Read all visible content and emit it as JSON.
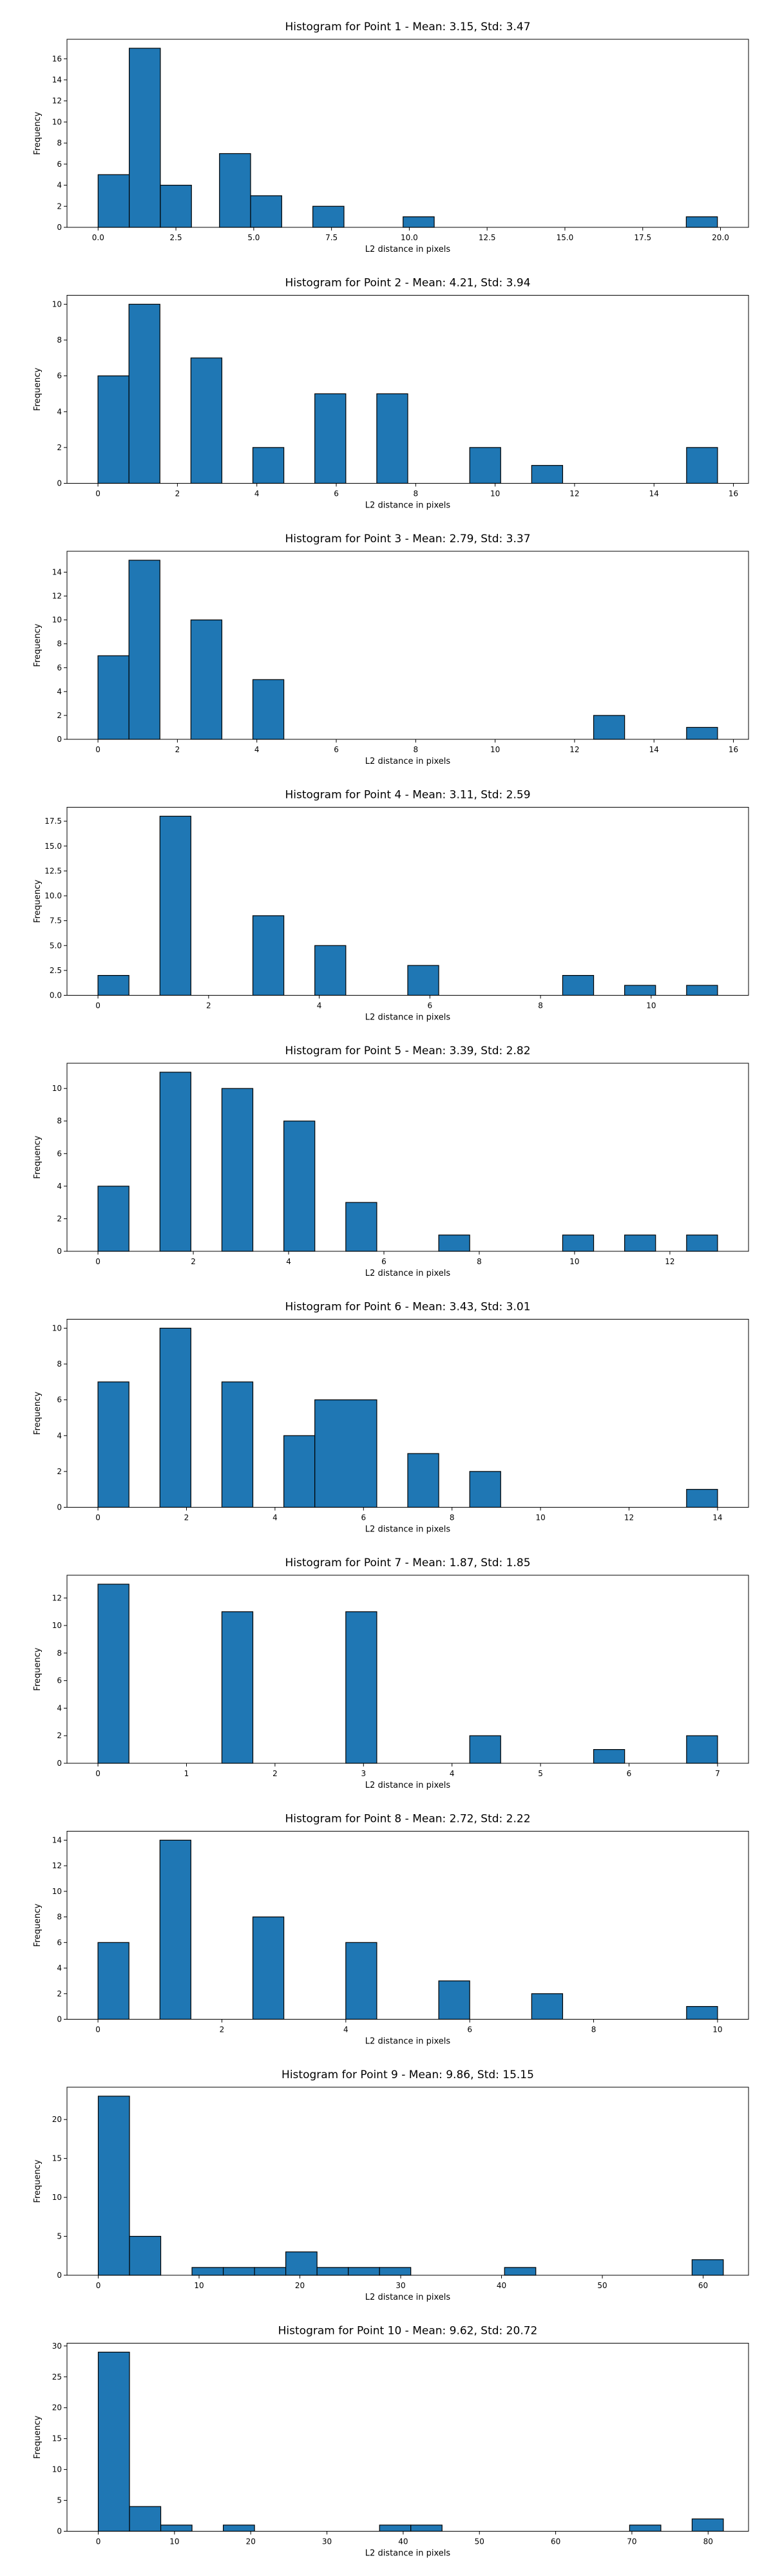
{
  "chart_data": [
    {
      "type": "bar",
      "title": "Histogram for Point 1 - Mean: 3.15, Std: 3.47",
      "xlabel": "L2 distance in pixels",
      "ylabel": "Frequency",
      "xlim": [
        -1.0,
        20.9
      ],
      "ylim": [
        0,
        17.85
      ],
      "xticks": [
        0.0,
        2.5,
        5.0,
        7.5,
        10.0,
        12.5,
        15.0,
        17.5,
        20.0
      ],
      "xtick_labels": [
        "0.0",
        "2.5",
        "5.0",
        "7.5",
        "10.0",
        "12.5",
        "15.0",
        "17.5",
        "20.0"
      ],
      "yticks": [
        0,
        2,
        4,
        6,
        8,
        10,
        12,
        14,
        16
      ],
      "ytick_labels": [
        "0",
        "2",
        "4",
        "6",
        "8",
        "10",
        "12",
        "14",
        "16"
      ],
      "grid": false,
      "bins": [
        {
          "x0": 0.0,
          "x1": 1.0,
          "count": 5
        },
        {
          "x0": 1.0,
          "x1": 2.0,
          "count": 17
        },
        {
          "x0": 2.0,
          "x1": 3.0,
          "count": 4
        },
        {
          "x0": 3.9,
          "x1": 4.9,
          "count": 7
        },
        {
          "x0": 4.9,
          "x1": 5.9,
          "count": 3
        },
        {
          "x0": 6.9,
          "x1": 7.9,
          "count": 2
        },
        {
          "x0": 9.8,
          "x1": 10.8,
          "count": 1
        },
        {
          "x0": 18.9,
          "x1": 19.9,
          "count": 1
        }
      ]
    },
    {
      "type": "bar",
      "title": "Histogram for Point 2 - Mean: 4.21, Std: 3.94",
      "xlabel": "L2 distance in pixels",
      "ylabel": "Frequency",
      "xlim": [
        -0.78,
        16.38
      ],
      "ylim": [
        0,
        10.5
      ],
      "xticks": [
        0,
        2,
        4,
        6,
        8,
        10,
        12,
        14,
        16
      ],
      "xtick_labels": [
        "0",
        "2",
        "4",
        "6",
        "8",
        "10",
        "12",
        "14",
        "16"
      ],
      "yticks": [
        0,
        2,
        4,
        6,
        8,
        10
      ],
      "ytick_labels": [
        "0",
        "2",
        "4",
        "6",
        "8",
        "10"
      ],
      "grid": false,
      "bins": [
        {
          "x0": 0.0,
          "x1": 0.78,
          "count": 6
        },
        {
          "x0": 0.78,
          "x1": 1.56,
          "count": 10
        },
        {
          "x0": 2.34,
          "x1": 3.12,
          "count": 7
        },
        {
          "x0": 3.9,
          "x1": 4.68,
          "count": 2
        },
        {
          "x0": 5.46,
          "x1": 6.24,
          "count": 5
        },
        {
          "x0": 7.02,
          "x1": 7.8,
          "count": 5
        },
        {
          "x0": 9.36,
          "x1": 10.14,
          "count": 2
        },
        {
          "x0": 10.92,
          "x1": 11.7,
          "count": 1
        },
        {
          "x0": 14.82,
          "x1": 15.6,
          "count": 2
        }
      ]
    },
    {
      "type": "bar",
      "title": "Histogram for Point 3 - Mean: 2.79, Std: 3.37",
      "xlabel": "L2 distance in pixels",
      "ylabel": "Frequency",
      "xlim": [
        -0.78,
        16.38
      ],
      "ylim": [
        0,
        15.75
      ],
      "xticks": [
        0,
        2,
        4,
        6,
        8,
        10,
        12,
        14,
        16
      ],
      "xtick_labels": [
        "0",
        "2",
        "4",
        "6",
        "8",
        "10",
        "12",
        "14",
        "16"
      ],
      "yticks": [
        0,
        2,
        4,
        6,
        8,
        10,
        12,
        14
      ],
      "ytick_labels": [
        "0",
        "2",
        "4",
        "6",
        "8",
        "10",
        "12",
        "14"
      ],
      "grid": false,
      "bins": [
        {
          "x0": 0.0,
          "x1": 0.78,
          "count": 7
        },
        {
          "x0": 0.78,
          "x1": 1.56,
          "count": 15
        },
        {
          "x0": 2.34,
          "x1": 3.12,
          "count": 10
        },
        {
          "x0": 3.9,
          "x1": 4.68,
          "count": 5
        },
        {
          "x0": 12.48,
          "x1": 13.26,
          "count": 2
        },
        {
          "x0": 14.82,
          "x1": 15.6,
          "count": 1
        }
      ]
    },
    {
      "type": "bar",
      "title": "Histogram for Point 4 - Mean: 3.11, Std: 2.59",
      "xlabel": "L2 distance in pixels",
      "ylabel": "Frequency",
      "xlim": [
        -0.56,
        11.76
      ],
      "ylim": [
        0,
        18.9
      ],
      "xticks": [
        0,
        2,
        4,
        6,
        8,
        10
      ],
      "xtick_labels": [
        "0",
        "2",
        "4",
        "6",
        "8",
        "10"
      ],
      "yticks": [
        0.0,
        2.5,
        5.0,
        7.5,
        10.0,
        12.5,
        15.0,
        17.5
      ],
      "ytick_labels": [
        "0.0",
        "2.5",
        "5.0",
        "7.5",
        "10.0",
        "12.5",
        "15.0",
        "17.5"
      ],
      "grid": false,
      "bins": [
        {
          "x0": 0.0,
          "x1": 0.56,
          "count": 2
        },
        {
          "x0": 1.12,
          "x1": 1.68,
          "count": 18
        },
        {
          "x0": 2.8,
          "x1": 3.36,
          "count": 8
        },
        {
          "x0": 3.92,
          "x1": 4.48,
          "count": 5
        },
        {
          "x0": 5.6,
          "x1": 6.16,
          "count": 3
        },
        {
          "x0": 8.4,
          "x1": 8.96,
          "count": 2
        },
        {
          "x0": 9.52,
          "x1": 10.08,
          "count": 1
        },
        {
          "x0": 10.64,
          "x1": 11.2,
          "count": 1
        }
      ]
    },
    {
      "type": "bar",
      "title": "Histogram for Point 5 - Mean: 3.39, Std: 2.82",
      "xlabel": "L2 distance in pixels",
      "ylabel": "Frequency",
      "xlim": [
        -0.65,
        13.65
      ],
      "ylim": [
        0,
        11.55
      ],
      "xticks": [
        0,
        2,
        4,
        6,
        8,
        10,
        12
      ],
      "xtick_labels": [
        "0",
        "2",
        "4",
        "6",
        "8",
        "10",
        "12"
      ],
      "yticks": [
        0,
        2,
        4,
        6,
        8,
        10
      ],
      "ytick_labels": [
        "0",
        "2",
        "4",
        "6",
        "8",
        "10"
      ],
      "grid": false,
      "bins": [
        {
          "x0": 0.0,
          "x1": 0.65,
          "count": 4
        },
        {
          "x0": 1.3,
          "x1": 1.95,
          "count": 11
        },
        {
          "x0": 2.6,
          "x1": 3.25,
          "count": 10
        },
        {
          "x0": 3.9,
          "x1": 4.55,
          "count": 8
        },
        {
          "x0": 5.2,
          "x1": 5.85,
          "count": 3
        },
        {
          "x0": 7.15,
          "x1": 7.8,
          "count": 1
        },
        {
          "x0": 9.75,
          "x1": 10.4,
          "count": 1
        },
        {
          "x0": 11.05,
          "x1": 11.7,
          "count": 1
        },
        {
          "x0": 12.35,
          "x1": 13.0,
          "count": 1
        }
      ]
    },
    {
      "type": "bar",
      "title": "Histogram for Point 6 - Mean: 3.43, Std: 3.01",
      "xlabel": "L2 distance in pixels",
      "ylabel": "Frequency",
      "xlim": [
        -0.7,
        14.7
      ],
      "ylim": [
        0,
        10.5
      ],
      "xticks": [
        0,
        2,
        4,
        6,
        8,
        10,
        12,
        14
      ],
      "xtick_labels": [
        "0",
        "2",
        "4",
        "6",
        "8",
        "10",
        "12",
        "14"
      ],
      "yticks": [
        0,
        2,
        4,
        6,
        8,
        10
      ],
      "ytick_labels": [
        "0",
        "2",
        "4",
        "6",
        "8",
        "10"
      ],
      "grid": false,
      "bins": [
        {
          "x0": 0.0,
          "x1": 0.7,
          "count": 7
        },
        {
          "x0": 1.4,
          "x1": 2.1,
          "count": 10
        },
        {
          "x0": 2.8,
          "x1": 3.5,
          "count": 7
        },
        {
          "x0": 4.2,
          "x1": 4.9,
          "count": 4
        },
        {
          "x0": 4.9,
          "x1": 6.3,
          "count": 6
        },
        {
          "x0": 7.0,
          "x1": 7.7,
          "count": 3
        },
        {
          "x0": 8.4,
          "x1": 9.1,
          "count": 2
        },
        {
          "x0": 13.3,
          "x1": 14.0,
          "count": 1
        }
      ]
    },
    {
      "type": "bar",
      "title": "Histogram for Point 7 - Mean: 1.87, Std: 1.85",
      "xlabel": "L2 distance in pixels",
      "ylabel": "Frequency",
      "xlim": [
        -0.35,
        7.35
      ],
      "ylim": [
        0,
        13.65
      ],
      "xticks": [
        0,
        1,
        2,
        3,
        4,
        5,
        6,
        7
      ],
      "xtick_labels": [
        "0",
        "1",
        "2",
        "3",
        "4",
        "5",
        "6",
        "7"
      ],
      "yticks": [
        0,
        2,
        4,
        6,
        8,
        10,
        12
      ],
      "ytick_labels": [
        "0",
        "2",
        "4",
        "6",
        "8",
        "10",
        "12"
      ],
      "grid": false,
      "bins": [
        {
          "x0": 0.0,
          "x1": 0.35,
          "count": 13
        },
        {
          "x0": 1.4,
          "x1": 1.75,
          "count": 11
        },
        {
          "x0": 2.8,
          "x1": 3.15,
          "count": 11
        },
        {
          "x0": 4.2,
          "x1": 4.55,
          "count": 2
        },
        {
          "x0": 5.6,
          "x1": 5.95,
          "count": 1
        },
        {
          "x0": 6.65,
          "x1": 7.0,
          "count": 2
        }
      ]
    },
    {
      "type": "bar",
      "title": "Histogram for Point 8 - Mean: 2.72, Std: 2.22",
      "xlabel": "L2 distance in pixels",
      "ylabel": "Frequency",
      "xlim": [
        -0.5,
        10.5
      ],
      "ylim": [
        0,
        14.7
      ],
      "xticks": [
        0,
        2,
        4,
        6,
        8,
        10
      ],
      "xtick_labels": [
        "0",
        "2",
        "4",
        "6",
        "8",
        "10"
      ],
      "yticks": [
        0,
        2,
        4,
        6,
        8,
        10,
        12,
        14
      ],
      "ytick_labels": [
        "0",
        "2",
        "4",
        "6",
        "8",
        "10",
        "12",
        "14"
      ],
      "grid": false,
      "bins": [
        {
          "x0": 0.0,
          "x1": 0.5,
          "count": 6
        },
        {
          "x0": 1.0,
          "x1": 1.5,
          "count": 14
        },
        {
          "x0": 2.5,
          "x1": 3.0,
          "count": 8
        },
        {
          "x0": 4.0,
          "x1": 4.5,
          "count": 6
        },
        {
          "x0": 5.5,
          "x1": 6.0,
          "count": 3
        },
        {
          "x0": 7.0,
          "x1": 7.5,
          "count": 2
        },
        {
          "x0": 9.5,
          "x1": 10.0,
          "count": 1
        }
      ]
    },
    {
      "type": "bar",
      "title": "Histogram for Point 9 - Mean: 9.86, Std: 15.15",
      "xlabel": "L2 distance in pixels",
      "ylabel": "Frequency",
      "xlim": [
        -3.1,
        64.5
      ],
      "ylim": [
        0,
        24.15
      ],
      "xticks": [
        0,
        10,
        20,
        30,
        40,
        50,
        60
      ],
      "xtick_labels": [
        "0",
        "10",
        "20",
        "30",
        "40",
        "50",
        "60"
      ],
      "yticks": [
        0,
        5,
        10,
        15,
        20
      ],
      "ytick_labels": [
        "0",
        "5",
        "10",
        "15",
        "20"
      ],
      "grid": false,
      "bins": [
        {
          "x0": 0.0,
          "x1": 3.1,
          "count": 23
        },
        {
          "x0": 3.1,
          "x1": 6.2,
          "count": 5
        },
        {
          "x0": 9.3,
          "x1": 12.4,
          "count": 1
        },
        {
          "x0": 12.4,
          "x1": 15.5,
          "count": 1
        },
        {
          "x0": 15.5,
          "x1": 18.6,
          "count": 1
        },
        {
          "x0": 18.6,
          "x1": 21.7,
          "count": 3
        },
        {
          "x0": 21.7,
          "x1": 24.8,
          "count": 1
        },
        {
          "x0": 24.8,
          "x1": 27.9,
          "count": 1
        },
        {
          "x0": 27.9,
          "x1": 31.0,
          "count": 1
        },
        {
          "x0": 40.3,
          "x1": 43.4,
          "count": 1
        },
        {
          "x0": 58.9,
          "x1": 62.0,
          "count": 2
        }
      ]
    },
    {
      "type": "bar",
      "title": "Histogram for Point 10 - Mean: 9.62, Std: 20.72",
      "xlabel": "L2 distance in pixels",
      "ylabel": "Frequency",
      "xlim": [
        -4.1,
        85.3
      ],
      "ylim": [
        0,
        30.45
      ],
      "xticks": [
        0,
        10,
        20,
        30,
        40,
        50,
        60,
        70,
        80
      ],
      "xtick_labels": [
        "0",
        "10",
        "20",
        "30",
        "40",
        "50",
        "60",
        "70",
        "80"
      ],
      "yticks": [
        0,
        5,
        10,
        15,
        20,
        25,
        30
      ],
      "ytick_labels": [
        "0",
        "5",
        "10",
        "15",
        "20",
        "25",
        "30"
      ],
      "grid": false,
      "bins": [
        {
          "x0": 0.0,
          "x1": 4.1,
          "count": 29
        },
        {
          "x0": 4.1,
          "x1": 8.2,
          "count": 4
        },
        {
          "x0": 8.2,
          "x1": 12.3,
          "count": 1
        },
        {
          "x0": 16.4,
          "x1": 20.5,
          "count": 1
        },
        {
          "x0": 36.9,
          "x1": 41.0,
          "count": 1
        },
        {
          "x0": 41.0,
          "x1": 45.1,
          "count": 1
        },
        {
          "x0": 69.7,
          "x1": 73.8,
          "count": 1
        },
        {
          "x0": 77.9,
          "x1": 82.0,
          "count": 2
        }
      ]
    }
  ]
}
